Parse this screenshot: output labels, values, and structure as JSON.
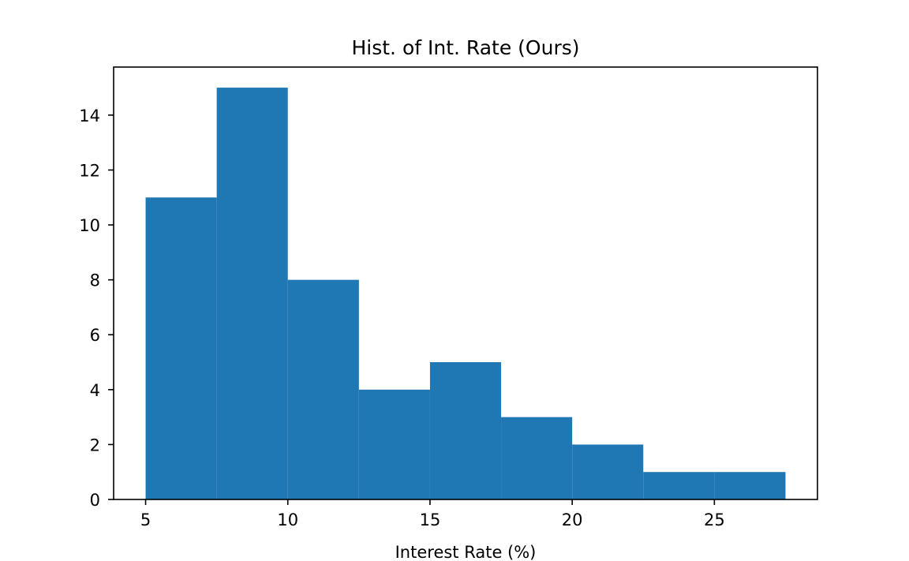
{
  "chart_data": {
    "type": "bar",
    "title": "Hist. of Int. Rate (Ours)",
    "xlabel": "Interest Rate (%)",
    "ylabel": "",
    "bins": [
      {
        "x0": 5.0,
        "x1": 7.5,
        "count": 11
      },
      {
        "x0": 7.5,
        "x1": 10.0,
        "count": 15
      },
      {
        "x0": 10.0,
        "x1": 12.5,
        "count": 8
      },
      {
        "x0": 12.5,
        "x1": 15.0,
        "count": 4
      },
      {
        "x0": 15.0,
        "x1": 17.5,
        "count": 5
      },
      {
        "x0": 17.5,
        "x1": 20.0,
        "count": 3
      },
      {
        "x0": 20.0,
        "x1": 22.5,
        "count": 2
      },
      {
        "x0": 22.5,
        "x1": 25.0,
        "count": 1
      },
      {
        "x0": 25.0,
        "x1": 27.5,
        "count": 1
      }
    ],
    "xlim": [
      3.875,
      28.625
    ],
    "ylim": [
      0,
      15.75
    ],
    "xticks": [
      5,
      10,
      15,
      20,
      25
    ],
    "xtick_labels": [
      "5",
      "10",
      "15",
      "20",
      "25"
    ],
    "yticks": [
      0,
      2,
      4,
      6,
      8,
      10,
      12,
      14
    ],
    "ytick_labels": [
      "0",
      "2",
      "4",
      "6",
      "8",
      "10",
      "12",
      "14"
    ],
    "grid": false,
    "bar_color": "#1f77b4"
  }
}
